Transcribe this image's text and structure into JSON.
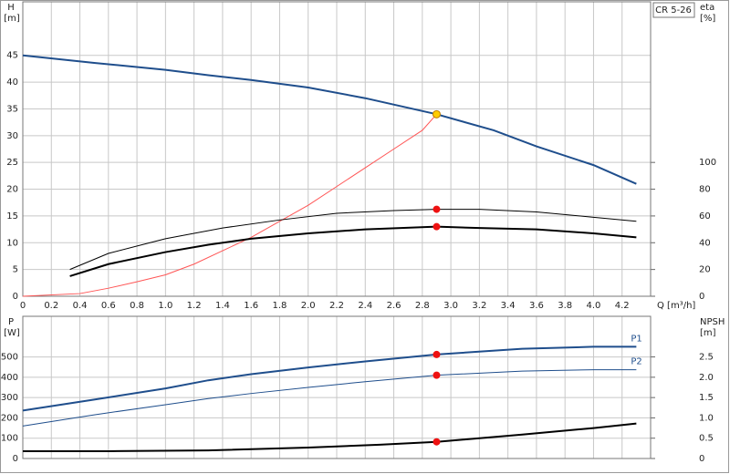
{
  "chart_data": [
    {
      "type": "line",
      "title": "CR 5-26",
      "y_label": "H",
      "y_unit": "[m]",
      "y2_label": "eta",
      "y2_unit": "[%]",
      "x_label": "Q [m³/h]",
      "xlim": [
        0,
        4.4
      ],
      "xticks": [
        0,
        0.2,
        0.4,
        0.6,
        0.8,
        {
          "value": 1,
          "label": "1.0"
        },
        1.2,
        1.4,
        1.6,
        1.8,
        {
          "value": 2,
          "label": "2.0"
        },
        2.2,
        2.4,
        2.6,
        2.8,
        {
          "value": 3,
          "label": "3.0"
        },
        3.2,
        3.4,
        3.6,
        3.8,
        {
          "value": 4,
          "label": "4.0"
        },
        4.2
      ],
      "show_xtick_labels": true,
      "ylim": [
        0,
        55
      ],
      "yticks": [
        0,
        5,
        10,
        15,
        20,
        25,
        30,
        35,
        40,
        45
      ],
      "y2lim": [
        0,
        220
      ],
      "y2ticks": [
        0,
        20,
        40,
        60,
        80,
        100
      ],
      "grid": true,
      "series": [
        {
          "kind": "line",
          "color": "#1f4e8c",
          "width": 2,
          "x": [
            0,
            0.5,
            1.0,
            1.3,
            1.6,
            2.0,
            2.4,
            2.9,
            3.3,
            3.6,
            4.0,
            4.3
          ],
          "values": [
            45,
            43.6,
            42.3,
            41.3,
            40.4,
            39,
            37,
            34,
            31,
            28,
            24.5,
            21
          ]
        },
        {
          "kind": "line",
          "color": "#ff5555",
          "width": 1,
          "x": [
            0,
            0.4,
            0.6,
            0.8,
            1.0,
            1.2,
            1.4,
            1.6,
            1.8,
            2.0,
            2.2,
            2.4,
            2.6,
            2.8,
            2.9
          ],
          "values": [
            0,
            0.5,
            1.5,
            2.7,
            4,
            6,
            8.5,
            11,
            14,
            17,
            20.5,
            24,
            27.5,
            31,
            34
          ]
        },
        {
          "kind": "line",
          "axis": "y2",
          "color": "#000000",
          "width": 1,
          "x": [
            0.33,
            0.6,
            1.0,
            1.4,
            1.8,
            2.2,
            2.6,
            2.9,
            3.2,
            3.6,
            4.0,
            4.3
          ],
          "values": [
            20,
            32,
            43,
            51,
            57,
            62,
            64,
            65,
            65,
            63,
            59,
            56
          ]
        },
        {
          "kind": "line",
          "axis": "y2",
          "color": "#000000",
          "width": 2,
          "x": [
            0.33,
            0.6,
            1.0,
            1.3,
            1.6,
            2.0,
            2.4,
            2.9,
            3.2,
            3.6,
            4.0,
            4.3
          ],
          "values": [
            15,
            24,
            33,
            38.5,
            43,
            47,
            50,
            52,
            51,
            50,
            47,
            44
          ]
        },
        {
          "kind": "points",
          "color": "#ffcc00",
          "x": [
            2.9
          ],
          "values": [
            34
          ]
        },
        {
          "kind": "points",
          "axis": "y2",
          "color": "#ee1111",
          "x": [
            2.9,
            2.9
          ],
          "values": [
            65,
            52
          ]
        }
      ]
    },
    {
      "type": "line",
      "y_label": "P",
      "y_unit": "[W]",
      "y2_label": "NPSH",
      "y2_unit": "[m]",
      "xlim": [
        0,
        4.4
      ],
      "xticks": [
        0,
        0.2,
        0.4,
        0.6,
        0.8,
        1,
        1.2,
        1.4,
        1.6,
        1.8,
        2,
        2.2,
        2.4,
        2.6,
        2.8,
        3,
        3.2,
        3.4,
        3.6,
        3.8,
        4,
        4.2
      ],
      "show_xtick_labels": false,
      "ylim": [
        0,
        700
      ],
      "yticks": [
        0,
        100,
        200,
        300,
        400,
        500
      ],
      "y2lim": [
        0,
        3.5
      ],
      "y2ticks": [
        0,
        0.5,
        {
          "value": 1,
          "label": "1.0"
        },
        1.5,
        {
          "value": 2,
          "label": "2.0"
        },
        2.5
      ],
      "grid": true,
      "series": [
        {
          "kind": "line",
          "name": "P1",
          "color": "#1f4e8c",
          "width": 2,
          "x": [
            0,
            0.5,
            1.0,
            1.3,
            1.6,
            2.0,
            2.4,
            2.9,
            3.5,
            4.0,
            4.3
          ],
          "values": [
            236,
            290,
            345,
            385,
            415,
            448,
            478,
            512,
            540,
            550,
            550
          ]
        },
        {
          "kind": "line",
          "name": "P2",
          "color": "#1f4e8c",
          "width": 1,
          "x": [
            0,
            0.5,
            1.0,
            1.3,
            1.6,
            2.0,
            2.4,
            2.9,
            3.5,
            4.0,
            4.3
          ],
          "values": [
            160,
            215,
            265,
            295,
            320,
            350,
            378,
            410,
            430,
            437,
            437
          ]
        },
        {
          "kind": "line",
          "axis": "y2",
          "color": "#000000",
          "width": 2,
          "x": [
            0,
            0.6,
            1.3,
            2.0,
            2.5,
            2.9,
            3.5,
            4.0,
            4.3
          ],
          "values": [
            0.18,
            0.18,
            0.2,
            0.27,
            0.34,
            0.41,
            0.59,
            0.75,
            0.86
          ]
        },
        {
          "kind": "points",
          "color": "#ee1111",
          "x": [
            2.9,
            2.9
          ],
          "values": [
            512,
            410
          ]
        },
        {
          "kind": "points",
          "axis": "y2",
          "color": "#ee1111",
          "x": [
            2.9
          ],
          "values": [
            0.41
          ]
        }
      ]
    }
  ]
}
